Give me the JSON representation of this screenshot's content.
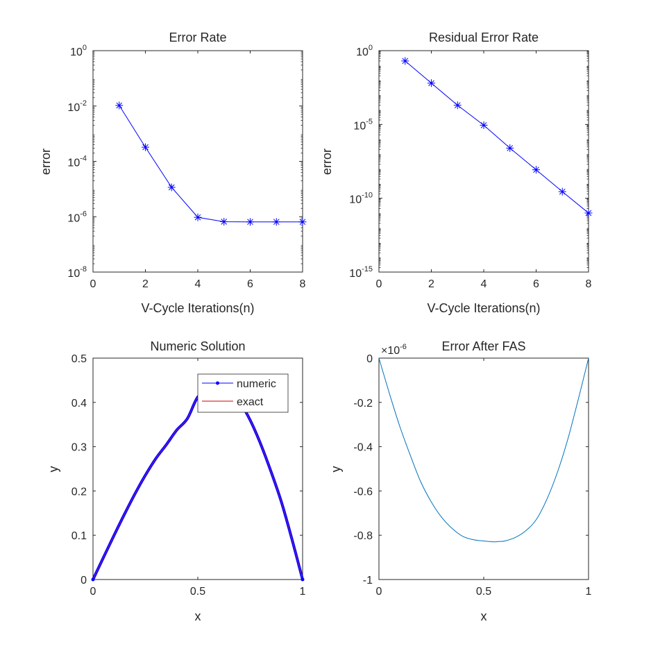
{
  "chart_data": [
    {
      "type": "line",
      "title": "Error Rate",
      "xlabel": "V-Cycle Iterations(n)",
      "ylabel": "error",
      "yscale": "log",
      "xlim": [
        0,
        8
      ],
      "ylim": [
        1e-08,
        1
      ],
      "xticks": [
        0,
        2,
        4,
        6,
        8
      ],
      "yticks": [
        -8,
        -6,
        -4,
        -2,
        0
      ],
      "grid": false,
      "marker": "*",
      "color": "#0000ff",
      "x": [
        1,
        2,
        3,
        4,
        5,
        6,
        7,
        8
      ],
      "y": [
        0.0105,
        0.000325,
        1.15e-05,
        9.5e-07,
        6.6e-07,
        6.5e-07,
        6.5e-07,
        6.5e-07
      ]
    },
    {
      "type": "line",
      "title": "Residual Error Rate",
      "xlabel": "V-Cycle Iterations(n)",
      "ylabel": "error",
      "yscale": "log",
      "xlim": [
        0,
        8
      ],
      "ylim": [
        1e-15,
        1
      ],
      "xticks": [
        0,
        2,
        4,
        6,
        8
      ],
      "yticks": [
        -15,
        -10,
        -5,
        0
      ],
      "grid": false,
      "marker": "*",
      "color": "#0000ff",
      "x": [
        1,
        2,
        3,
        4,
        5,
        6,
        7,
        8
      ],
      "y": [
        0.2,
        0.0063,
        0.0002,
        8.9e-06,
        2.5e-07,
        8.5e-09,
        2.8e-10,
        1e-11
      ]
    },
    {
      "type": "line",
      "title": "Numeric Solution",
      "xlabel": "x",
      "ylabel": "y",
      "xlim": [
        0,
        1
      ],
      "ylim": [
        0,
        0.5
      ],
      "xticks": [
        "0",
        "0.5",
        "1"
      ],
      "yticks": [
        "0",
        "0.1",
        "0.2",
        "0.3",
        "0.4",
        "0.5"
      ],
      "grid": false,
      "legend_position": "top-right",
      "series": [
        {
          "name": "numeric",
          "color": "#0000ff",
          "marker": "."
        },
        {
          "name": "exact",
          "color": "#cc0000",
          "marker": "none"
        }
      ],
      "x": [
        0,
        0.05,
        0.1,
        0.15,
        0.2,
        0.25,
        0.3,
        0.35,
        0.4,
        0.45,
        0.5,
        0.55,
        0.6,
        0.65,
        0.7,
        0.75,
        0.8,
        0.85,
        0.9,
        0.95,
        1
      ],
      "y": [
        0,
        0.0499,
        0.0993,
        0.1474,
        0.1933,
        0.2357,
        0.2734,
        0.3046,
        0.3377,
        0.3633,
        0.4122,
        0.4256,
        0.4302,
        0.4226,
        0.4003,
        0.3597,
        0.3059,
        0.2428,
        0.1734,
        0.0896,
        0
      ]
    },
    {
      "type": "line",
      "title": "Error After FAS",
      "exponent_label": "×10",
      "exponent_power": "-6",
      "xlabel": "x",
      "ylabel": "y",
      "xlim": [
        0,
        1
      ],
      "ylim": [
        -1,
        0
      ],
      "xticks": [
        "0",
        "0.5",
        "1"
      ],
      "yticks": [
        "0",
        "-0.2",
        "-0.4",
        "-0.6",
        "-0.8",
        "-1"
      ],
      "grid": false,
      "color": "#0072bd",
      "x": [
        0,
        0.05,
        0.1,
        0.15,
        0.2,
        0.25,
        0.3,
        0.35,
        0.4,
        0.45,
        0.5,
        0.55,
        0.575,
        0.6,
        0.65,
        0.7,
        0.75,
        0.8,
        0.85,
        0.9,
        0.95,
        1
      ],
      "y": [
        0,
        -0.16,
        -0.31,
        -0.44,
        -0.56,
        -0.65,
        -0.72,
        -0.77,
        -0.805,
        -0.82,
        -0.826,
        -0.83,
        -0.828,
        -0.826,
        -0.81,
        -0.78,
        -0.73,
        -0.64,
        -0.52,
        -0.37,
        -0.19,
        0
      ]
    }
  ]
}
